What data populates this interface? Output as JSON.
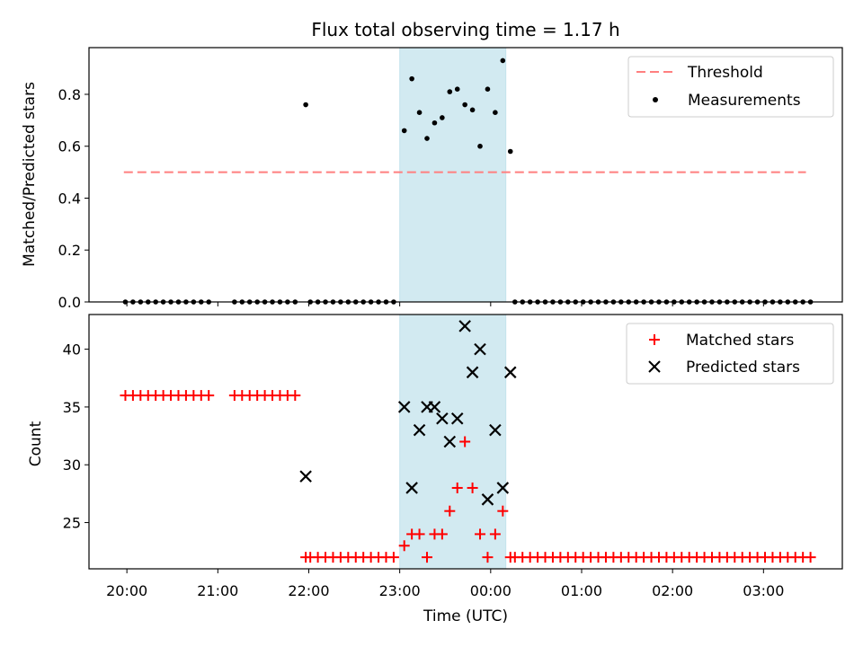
{
  "chart_data": [
    {
      "type": "scatter",
      "title": "Flux total observing time = 1.17 h",
      "xlabel": "",
      "ylabel": "Matched/Predicted stars",
      "xlim": [
        "19:35",
        "03:52"
      ],
      "ylim": [
        0,
        0.98
      ],
      "yticks": [
        0.0,
        0.2,
        0.4,
        0.6,
        0.8
      ],
      "yticklabels": [
        "0.0",
        "0.2",
        "0.4",
        "0.6",
        "0.8"
      ],
      "legend_position": "top-right",
      "shaded_interval": {
        "start": "23:00",
        "end": "00:10",
        "color": "#add8e6"
      },
      "threshold": {
        "name": "Threshold",
        "value": 0.5,
        "x_start": "19:58",
        "x_end": "03:28",
        "color": "#ff7f7f",
        "style": "dashed"
      },
      "series": [
        {
          "name": "Measurements",
          "color": "#000000",
          "marker": "dot",
          "x": [
            "19:59",
            "20:04",
            "20:09",
            "20:14",
            "20:19",
            "20:24",
            "20:29",
            "20:34",
            "20:39",
            "20:44",
            "20:49",
            "20:54",
            "21:11",
            "21:16",
            "21:21",
            "21:26",
            "21:31",
            "21:36",
            "21:41",
            "21:46",
            "21:51",
            "21:58",
            "22:01",
            "22:06",
            "22:11",
            "22:16",
            "22:21",
            "22:26",
            "22:31",
            "22:36",
            "22:41",
            "22:46",
            "22:51",
            "22:56",
            "23:03",
            "23:08",
            "23:13",
            "23:18",
            "23:23",
            "23:28",
            "23:33",
            "23:38",
            "23:43",
            "23:48",
            "23:53",
            "23:58",
            "00:03",
            "00:08",
            "00:13",
            "00:16",
            "00:21",
            "00:26",
            "00:31",
            "00:36",
            "00:41",
            "00:46",
            "00:51",
            "00:56",
            "01:01",
            "01:06",
            "01:11",
            "01:16",
            "01:21",
            "01:26",
            "01:31",
            "01:36",
            "01:41",
            "01:46",
            "01:51",
            "01:56",
            "02:01",
            "02:06",
            "02:11",
            "02:16",
            "02:21",
            "02:26",
            "02:31",
            "02:36",
            "02:41",
            "02:46",
            "02:51",
            "02:56",
            "03:01",
            "03:06",
            "03:11",
            "03:16",
            "03:21",
            "03:26",
            "03:31"
          ],
          "y": [
            0,
            0,
            0,
            0,
            0,
            0,
            0,
            0,
            0,
            0,
            0,
            0,
            0,
            0,
            0,
            0,
            0,
            0,
            0,
            0,
            0,
            0.76,
            0,
            0,
            0,
            0,
            0,
            0,
            0,
            0,
            0,
            0,
            0,
            0,
            0.66,
            0.86,
            0.73,
            0.63,
            0.69,
            0.71,
            0.81,
            0.82,
            0.76,
            0.74,
            0.6,
            0.82,
            0.73,
            0.93,
            0.58,
            0,
            0,
            0,
            0,
            0,
            0,
            0,
            0,
            0,
            0,
            0,
            0,
            0,
            0,
            0,
            0,
            0,
            0,
            0,
            0,
            0,
            0,
            0,
            0,
            0,
            0,
            0,
            0,
            0,
            0,
            0,
            0,
            0,
            0,
            0,
            0,
            0,
            0,
            0,
            0
          ]
        }
      ]
    },
    {
      "type": "scatter",
      "title": "",
      "xlabel": "Time (UTC)",
      "ylabel": "Count",
      "xlim": [
        "19:35",
        "03:52"
      ],
      "ylim": [
        21,
        43
      ],
      "yticks": [
        25,
        30,
        35,
        40
      ],
      "yticklabels": [
        "25",
        "30",
        "35",
        "40"
      ],
      "xticks": [
        "20:00",
        "21:00",
        "22:00",
        "23:00",
        "00:00",
        "01:00",
        "02:00",
        "03:00"
      ],
      "xticklabels": [
        "20:00",
        "21:00",
        "22:00",
        "23:00",
        "00:00",
        "01:00",
        "02:00",
        "03:00"
      ],
      "legend_position": "top-right",
      "shaded_interval": {
        "start": "23:00",
        "end": "00:10",
        "color": "#add8e6"
      },
      "series": [
        {
          "name": "Matched stars",
          "color": "#ff0000",
          "marker": "plus",
          "x": [
            "19:59",
            "20:04",
            "20:09",
            "20:14",
            "20:19",
            "20:24",
            "20:29",
            "20:34",
            "20:39",
            "20:44",
            "20:49",
            "20:54",
            "21:11",
            "21:16",
            "21:21",
            "21:26",
            "21:31",
            "21:36",
            "21:41",
            "21:46",
            "21:51",
            "21:58",
            "22:01",
            "22:06",
            "22:11",
            "22:16",
            "22:21",
            "22:26",
            "22:31",
            "22:36",
            "22:41",
            "22:46",
            "22:51",
            "22:56",
            "23:03",
            "23:08",
            "23:13",
            "23:18",
            "23:23",
            "23:28",
            "23:33",
            "23:38",
            "23:43",
            "23:48",
            "23:53",
            "23:58",
            "00:03",
            "00:08",
            "00:13",
            "00:16",
            "00:21",
            "00:26",
            "00:31",
            "00:36",
            "00:41",
            "00:46",
            "00:51",
            "00:56",
            "01:01",
            "01:06",
            "01:11",
            "01:16",
            "01:21",
            "01:26",
            "01:31",
            "01:36",
            "01:41",
            "01:46",
            "01:51",
            "01:56",
            "02:01",
            "02:06",
            "02:11",
            "02:16",
            "02:21",
            "02:26",
            "02:31",
            "02:36",
            "02:41",
            "02:46",
            "02:51",
            "02:56",
            "03:01",
            "03:06",
            "03:11",
            "03:16",
            "03:21",
            "03:26",
            "03:31"
          ],
          "y": [
            36,
            36,
            36,
            36,
            36,
            36,
            36,
            36,
            36,
            36,
            36,
            36,
            36,
            36,
            36,
            36,
            36,
            36,
            36,
            36,
            36,
            22,
            22,
            22,
            22,
            22,
            22,
            22,
            22,
            22,
            22,
            22,
            22,
            22,
            23,
            24,
            24,
            22,
            24,
            24,
            26,
            28,
            32,
            28,
            24,
            22,
            24,
            26,
            22,
            22,
            22,
            22,
            22,
            22,
            22,
            22,
            22,
            22,
            22,
            22,
            22,
            22,
            22,
            22,
            22,
            22,
            22,
            22,
            22,
            22,
            22,
            22,
            22,
            22,
            22,
            22,
            22,
            22,
            22,
            22,
            22,
            22,
            22,
            22,
            22,
            22,
            22,
            22,
            22
          ]
        },
        {
          "name": "Predicted stars",
          "color": "#000000",
          "marker": "x",
          "x": [
            "21:58",
            "23:03",
            "23:08",
            "23:13",
            "23:18",
            "23:23",
            "23:28",
            "23:33",
            "23:38",
            "23:43",
            "23:48",
            "23:53",
            "23:58",
            "00:03",
            "00:08",
            "00:13"
          ],
          "y": [
            29,
            35,
            28,
            33,
            35,
            35,
            34,
            32,
            34,
            42,
            38,
            40,
            27,
            33,
            28,
            38
          ]
        }
      ]
    }
  ]
}
